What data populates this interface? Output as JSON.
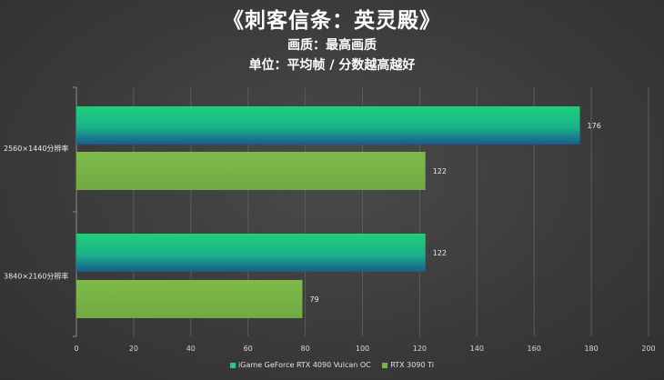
{
  "title": "《刺客信条：英灵殿》",
  "subtitle": "画质：最高画质",
  "subtitle2": "单位：平均帧 / 分数越高越好",
  "colors": {
    "series1": "#1ec77e",
    "series1_dark": "#1a5f8a",
    "series2": "#7ab648"
  },
  "chart_data": {
    "type": "bar",
    "orientation": "horizontal",
    "categories": [
      "2560×1440分辨率",
      "3840×2160分辨率"
    ],
    "series": [
      {
        "name": "iGame GeForce RTX 4090 Vulcan OC",
        "values": [
          176,
          122
        ]
      },
      {
        "name": "RTX 3090 Ti",
        "values": [
          122,
          79
        ]
      }
    ],
    "xlim": [
      0,
      200
    ],
    "xticks": [
      "0",
      "20",
      "40",
      "60",
      "80",
      "100",
      "120",
      "140",
      "160",
      "180",
      "200"
    ],
    "grid": true,
    "legend": "bottom"
  }
}
